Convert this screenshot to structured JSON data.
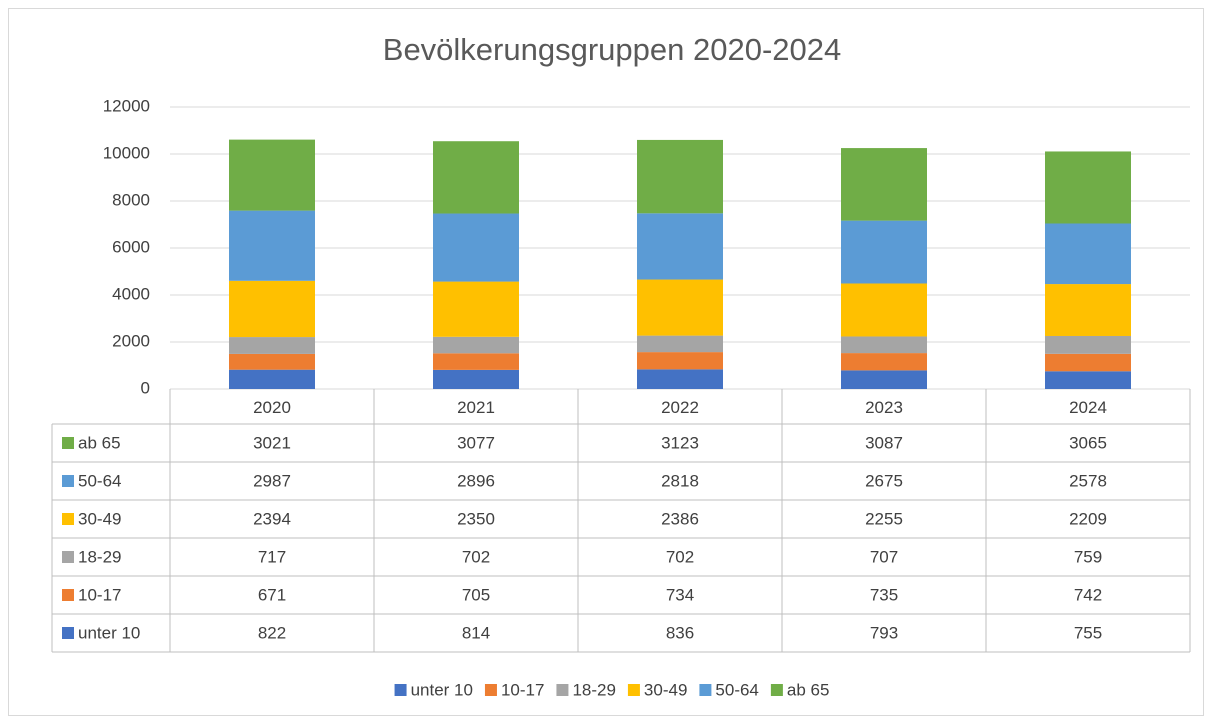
{
  "chart_data": {
    "type": "stacked_bar",
    "title": "Bevölkerungsgruppen 2020-2024",
    "categories": [
      "2020",
      "2021",
      "2022",
      "2023",
      "2024"
    ],
    "series": [
      {
        "name": "unter 10",
        "color": "#4472c4",
        "values": [
          822,
          814,
          836,
          793,
          755
        ]
      },
      {
        "name": "10-17",
        "color": "#ed7d31",
        "values": [
          671,
          705,
          734,
          735,
          742
        ]
      },
      {
        "name": "18-29",
        "color": "#a5a5a5",
        "values": [
          717,
          702,
          702,
          707,
          759
        ]
      },
      {
        "name": "30-49",
        "color": "#ffc000",
        "values": [
          2394,
          2350,
          2386,
          2255,
          2209
        ]
      },
      {
        "name": "50-64",
        "color": "#5b9bd5",
        "values": [
          2987,
          2896,
          2818,
          2675,
          2578
        ]
      },
      {
        "name": "ab 65",
        "color": "#70ad47",
        "values": [
          3021,
          3077,
          3123,
          3087,
          3065
        ]
      }
    ],
    "ylim": [
      0,
      12000
    ],
    "yticks": [
      0,
      2000,
      4000,
      6000,
      8000,
      10000,
      12000
    ],
    "grid": true,
    "legend": "bottom"
  }
}
